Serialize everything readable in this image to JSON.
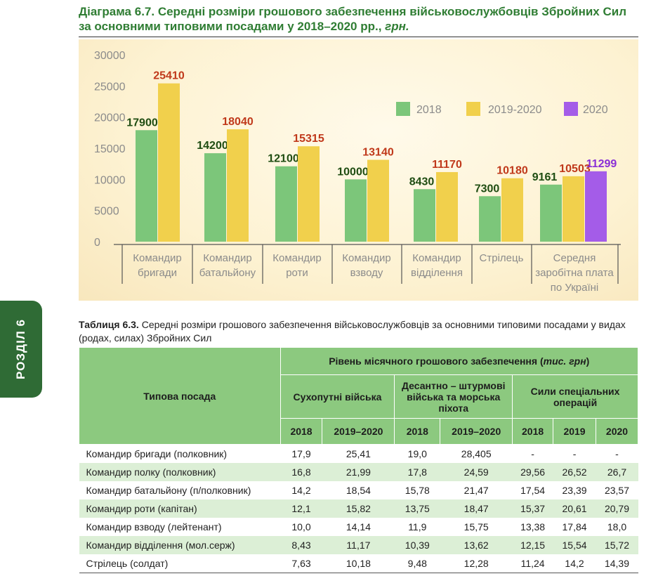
{
  "diagram": {
    "label": "Діаграма 6.7.",
    "title": "Середні розміри грошового забезпечення військовослужбовців Збройних Сил за основними типовими посадами у 2018–2020 рр.,",
    "unit": "грн."
  },
  "chart_data": {
    "type": "bar",
    "ylim": [
      0,
      30000
    ],
    "yticks": [
      "0",
      "5000",
      "10000",
      "15000",
      "20000",
      "25000",
      "30000"
    ],
    "categories": [
      [
        "Командир",
        "бригади"
      ],
      [
        "Командир",
        "батальйону"
      ],
      [
        "Командир",
        "роти"
      ],
      [
        "Командир",
        "взводу"
      ],
      [
        "Командир",
        "відділення"
      ],
      [
        "Стрілець"
      ],
      [
        "Середня",
        "заробітна плата",
        "по Україні"
      ]
    ],
    "series": [
      {
        "name": "2018",
        "color": "#7cc67a",
        "label_color": "#1f4d12",
        "values": [
          17900,
          14200,
          12100,
          10000,
          8430,
          7300,
          9161
        ]
      },
      {
        "name": "2019-2020",
        "color": "#f1d04c",
        "label_color": "#c0391b",
        "values": [
          25410,
          18040,
          15315,
          13140,
          11170,
          10180,
          10503
        ]
      },
      {
        "name": "2020",
        "color": "#a45ce8",
        "label_color": "#8a2fd6",
        "values": [
          null,
          null,
          null,
          null,
          null,
          null,
          11299
        ]
      }
    ],
    "legend": "top-right",
    "grid": false
  },
  "side_tab": "РОЗДІЛ 6",
  "table": {
    "caption_label": "Таблиця 6.3.",
    "caption_text": "Середні розміри грошового забезпечення військовослужбовців за основними типовими посадами у видах (родах, силах) Збройних Сил",
    "header_level_prefix": "Рівень місячного грошового забезпечення (",
    "header_level_unit": "тис. грн",
    "header_level_suffix": ")",
    "header_position": "Типова посада",
    "groups": [
      "Сухопутні війська",
      "Десантно – штурмові війська та морська піхота",
      "Сили спеціальних операцій"
    ],
    "years": [
      "2018",
      "2019–2020",
      "2018",
      "2019–2020",
      "2018",
      "2019",
      "2020"
    ],
    "rows": [
      [
        "Командир бригади (полковник)",
        "17,9",
        "25,41",
        "19,0",
        "28,405",
        "-",
        "-",
        "-"
      ],
      [
        "Командир полку (полковник)",
        "16,8",
        "21,99",
        "17,8",
        "24,59",
        "29,56",
        "26,52",
        "26,7"
      ],
      [
        "Командир батальйону (п/полковник)",
        "14,2",
        "18,54",
        "15,78",
        "21,47",
        "17,54",
        "23,39",
        "23,57"
      ],
      [
        "Командир роти (капітан)",
        "12,1",
        "15,82",
        "13,75",
        "18,47",
        "15,37",
        "20,61",
        "20,79"
      ],
      [
        "Командир взводу (лейтенант)",
        "10,0",
        "14,14",
        "11,9",
        "15,75",
        "13,38",
        "17,84",
        "18,0"
      ],
      [
        "Командир відділення (мол.серж)",
        "8,43",
        "11,17",
        "10,39",
        "13,62",
        "12,15",
        "15,54",
        "15,72"
      ],
      [
        "Стрілець (солдат)",
        "7,63",
        "10,18",
        "9,48",
        "12,28",
        "11,24",
        "14,2",
        "14,39"
      ]
    ]
  }
}
